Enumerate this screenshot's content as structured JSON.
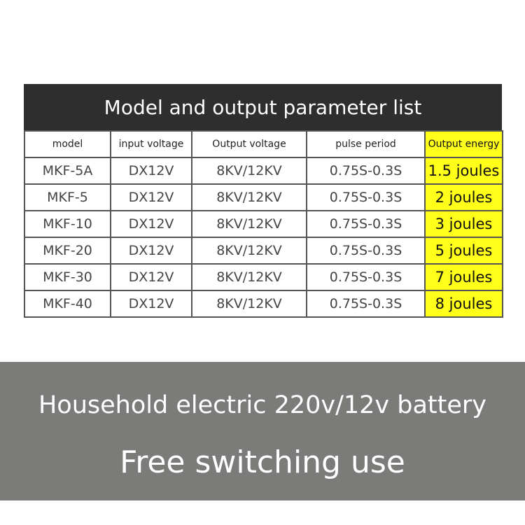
{
  "title": "Model and output parameter list",
  "table": {
    "headers": [
      "model",
      "input voltage",
      "Output voltage",
      "pulse period",
      "Output energy"
    ],
    "rows": [
      [
        "MKF-5A",
        "DX12V",
        "8KV/12KV",
        "0.75S-0.3S",
        "1.5 joules"
      ],
      [
        "MKF-5",
        "DX12V",
        "8KV/12KV",
        "0.75S-0.3S",
        "2 joules"
      ],
      [
        "MKF-10",
        "DX12V",
        "8KV/12KV",
        "0.75S-0.3S",
        "3 joules"
      ],
      [
        "MKF-20",
        "DX12V",
        "8KV/12KV",
        "0.75S-0.3S",
        "5 joules"
      ],
      [
        "MKF-30",
        "DX12V",
        "8KV/12KV",
        "0.75S-0.3S",
        "7 joules"
      ],
      [
        "MKF-40",
        "DX12V",
        "8KV/12KV",
        "0.75S-0.3S",
        "8 joules"
      ]
    ],
    "highlight_color": "#ffff1a"
  },
  "banner": {
    "line1": "Household electric 220v/12v battery",
    "line2": "Free switching use"
  }
}
